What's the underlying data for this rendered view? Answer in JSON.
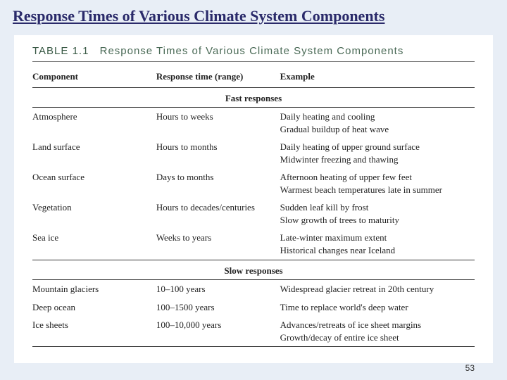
{
  "slide": {
    "title": "Response Times of Various Climate System Components",
    "page_number": "53",
    "bg_color": "#e8eef6",
    "title_color": "#2a2a6a"
  },
  "table": {
    "caption_label": "TABLE 1.1",
    "caption_text": "Response Times of Various Climate System Components",
    "caption_color": "#4a6a56",
    "columns": [
      "Component",
      "Response time (range)",
      "Example"
    ],
    "sections": [
      {
        "label": "Fast responses",
        "rows": [
          {
            "component": "Atmosphere",
            "response": "Hours to weeks",
            "examples": [
              "Daily heating and cooling",
              "Gradual buildup of heat wave"
            ]
          },
          {
            "component": "Land surface",
            "response": "Hours to months",
            "examples": [
              "Daily heating of upper ground surface",
              "Midwinter freezing and thawing"
            ]
          },
          {
            "component": "Ocean surface",
            "response": "Days to months",
            "examples": [
              "Afternoon heating of upper few feet",
              "Warmest beach temperatures late in summer"
            ]
          },
          {
            "component": "Vegetation",
            "response": "Hours to decades/centuries",
            "examples": [
              "Sudden leaf kill by frost",
              "Slow growth of trees to maturity"
            ]
          },
          {
            "component": "Sea ice",
            "response": "Weeks to years",
            "examples": [
              "Late-winter maximum extent",
              "Historical changes near Iceland"
            ]
          }
        ]
      },
      {
        "label": "Slow responses",
        "rows": [
          {
            "component": "Mountain glaciers",
            "response": "10–100 years",
            "examples": [
              "Widespread glacier retreat in 20th century"
            ]
          },
          {
            "component": "Deep ocean",
            "response": "100–1500 years",
            "examples": [
              "Time to replace world's deep water"
            ]
          },
          {
            "component": "Ice sheets",
            "response": "100–10,000 years",
            "examples": [
              "Advances/retreats of ice sheet margins",
              "Growth/decay of entire ice sheet"
            ]
          }
        ]
      }
    ]
  }
}
